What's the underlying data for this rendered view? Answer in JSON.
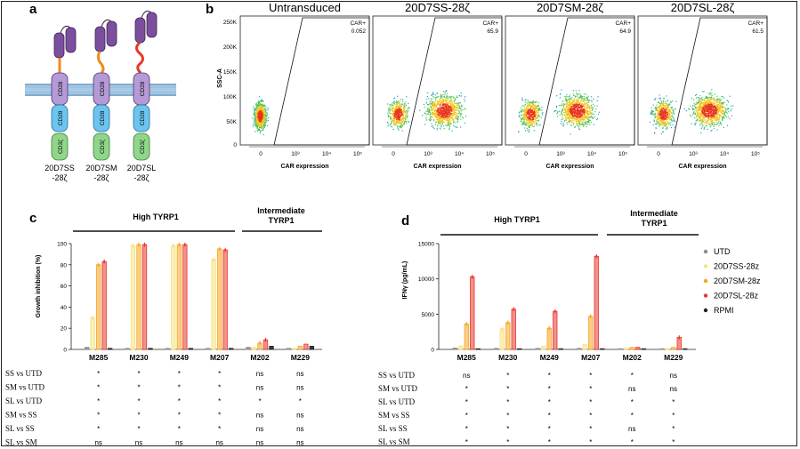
{
  "panel_labels": {
    "a": "a",
    "b": "b",
    "c": "c",
    "d": "d"
  },
  "panel_a": {
    "cd28_label": "CD28",
    "cd3z_label": "CD3ζ",
    "constructs": [
      {
        "line1": "20D7SS",
        "line2": "-28ζ"
      },
      {
        "line1": "20D7SM",
        "line2": "-28ζ"
      },
      {
        "line1": "20D7SL",
        "line2": "-28ζ"
      }
    ]
  },
  "panel_b": {
    "y_axis_label": "SSC-A",
    "x_axis_label": "CAR expression",
    "y_ticks": [
      "250K",
      "200K",
      "150K",
      "100K",
      "50K",
      "0"
    ],
    "gate_label": "CAR+",
    "plots": [
      {
        "title": "Untransduced",
        "car_pct": "0.052"
      },
      {
        "title": "20D7SS-28ζ",
        "car_pct": "65.9"
      },
      {
        "title": "20D7SM-28ζ",
        "car_pct": "64.9"
      },
      {
        "title": "20D7SL-28ζ",
        "car_pct": "61.5"
      }
    ]
  },
  "chart_data": [
    {
      "type": "bar",
      "panel": "c",
      "ylabel": "Growth inhibition (%)",
      "ylim": [
        0,
        100
      ],
      "yticks": [
        "100",
        "80",
        "60",
        "40",
        "20",
        "0"
      ],
      "group_labels": [
        "High TYRP1",
        "Intermediate TYRP1"
      ],
      "categories": [
        "M285",
        "M230",
        "M249",
        "M207",
        "M202",
        "M229"
      ],
      "series": [
        {
          "values": [
            2,
            1,
            1,
            1,
            2,
            1
          ]
        },
        {
          "values": [
            30,
            98,
            98,
            85,
            2,
            1
          ]
        },
        {
          "values": [
            80,
            99,
            99,
            95,
            6,
            3
          ]
        },
        {
          "values": [
            83,
            99,
            99,
            94,
            9,
            5
          ]
        },
        {
          "values": [
            1,
            1,
            1,
            1,
            3,
            3
          ]
        }
      ],
      "comparisons": [
        "SS vs UTD",
        "SM vs UTD",
        "SL vs UTD",
        "SM vs SS",
        "SL vs SS",
        "SL vs SM"
      ],
      "stats": [
        [
          "*",
          "*",
          "*",
          "*",
          "ns",
          "ns"
        ],
        [
          "*",
          "*",
          "*",
          "*",
          "ns",
          "ns"
        ],
        [
          "*",
          "*",
          "*",
          "*",
          "*",
          "*"
        ],
        [
          "*",
          "*",
          "*",
          "*",
          "ns",
          "ns"
        ],
        [
          "*",
          "*",
          "*",
          "*",
          "ns",
          "ns"
        ],
        [
          "ns",
          "ns",
          "ns",
          "ns",
          "ns",
          "ns"
        ]
      ]
    },
    {
      "type": "bar",
      "panel": "d",
      "ylabel": "IFNγ (pg/mL)",
      "ylim": [
        0,
        15000
      ],
      "yticks": [
        "15000",
        "10000",
        "5000",
        "0"
      ],
      "group_labels": [
        "High TYRP1",
        "Intermediate TYRP1"
      ],
      "categories": [
        "M285",
        "M230",
        "M249",
        "M207",
        "M202",
        "M229"
      ],
      "series": [
        {
          "name": "UTD",
          "values": [
            200,
            150,
            150,
            150,
            100,
            100
          ]
        },
        {
          "name": "20D7SS-28z",
          "values": [
            500,
            2900,
            450,
            700,
            150,
            100
          ]
        },
        {
          "name": "20D7SM-28z",
          "values": [
            3600,
            3800,
            3000,
            4700,
            300,
            300
          ]
        },
        {
          "name": "20D7SL-28z",
          "values": [
            10300,
            5700,
            5400,
            13200,
            300,
            1700
          ]
        },
        {
          "name": "RPMI",
          "values": [
            100,
            100,
            100,
            100,
            100,
            100
          ]
        }
      ],
      "comparisons": [
        "SS vs UTD",
        "SM vs UTD",
        "SL vs UTD",
        "SM vs SS",
        "SL vs SS",
        "SL vs SM"
      ],
      "stats": [
        [
          "ns",
          "*",
          "*",
          "*",
          "*",
          "ns"
        ],
        [
          "*",
          "*",
          "*",
          "*",
          "ns",
          "ns"
        ],
        [
          "*",
          "*",
          "*",
          "*",
          "*",
          "*"
        ],
        [
          "*",
          "*",
          "*",
          "*",
          "*",
          "*"
        ],
        [
          "*",
          "*",
          "*",
          "*",
          "ns",
          "*"
        ],
        [
          "*",
          "*",
          "*",
          "*",
          "*",
          "*"
        ]
      ]
    }
  ],
  "colors": {
    "UTD": "#8c8c8c",
    "SS": "#f6e27a",
    "SM": "#f5a623",
    "SL": "#e8362a",
    "RPMI": "#222222",
    "cd28": "#9b7fc4",
    "cd28_mid": "#4fb3e8",
    "cd3z": "#7fcf7a",
    "membrane": "#a9cbe6",
    "scfv": "#7b4f9e",
    "hinge": "#f08a24"
  }
}
